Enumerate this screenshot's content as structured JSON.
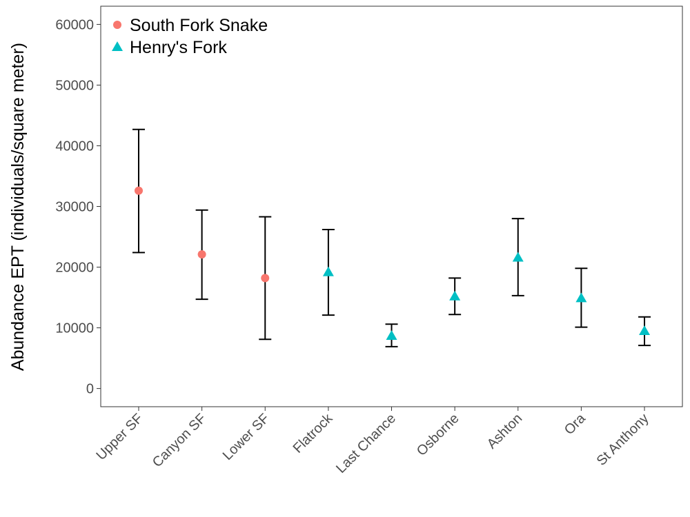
{
  "chart_data": {
    "type": "scatter",
    "ylabel": "Abundance EPT (individuals/square meter)",
    "xlabel": "",
    "ylim": [
      -3000,
      63000
    ],
    "yticks": [
      0,
      10000,
      20000,
      30000,
      40000,
      50000,
      60000
    ],
    "ytick_labels": [
      "0",
      "10000",
      "20000",
      "30000",
      "40000",
      "50000",
      "60000"
    ],
    "categories": [
      "Upper SF",
      "Canyon SF",
      "Lower SF",
      "Flatrock",
      "Last Chance",
      "Osborne",
      "Ashton",
      "Ora",
      "St Anthony"
    ],
    "grid": false,
    "legend_position": "top-left",
    "error_bar_color": "#000000",
    "series": [
      {
        "name": "South Fork Snake",
        "marker": "circle",
        "color": "#F8766D",
        "points": [
          {
            "x": "Upper SF",
            "y": 32600,
            "ymin": 22400,
            "ymax": 42700
          },
          {
            "x": "Canyon SF",
            "y": 22100,
            "ymin": 14700,
            "ymax": 29400
          },
          {
            "x": "Lower SF",
            "y": 18200,
            "ymin": 8100,
            "ymax": 28300
          }
        ]
      },
      {
        "name": "Henry's Fork",
        "marker": "triangle",
        "color": "#00BFC4",
        "points": [
          {
            "x": "Flatrock",
            "y": 19200,
            "ymin": 12100,
            "ymax": 26200
          },
          {
            "x": "Last Chance",
            "y": 8700,
            "ymin": 6900,
            "ymax": 10600
          },
          {
            "x": "Osborne",
            "y": 15200,
            "ymin": 12200,
            "ymax": 18200
          },
          {
            "x": "Ashton",
            "y": 21600,
            "ymin": 15300,
            "ymax": 28000
          },
          {
            "x": "Ora",
            "y": 14900,
            "ymin": 10100,
            "ymax": 19800
          },
          {
            "x": "St Anthony",
            "y": 9500,
            "ymin": 7100,
            "ymax": 11800
          }
        ]
      }
    ]
  }
}
